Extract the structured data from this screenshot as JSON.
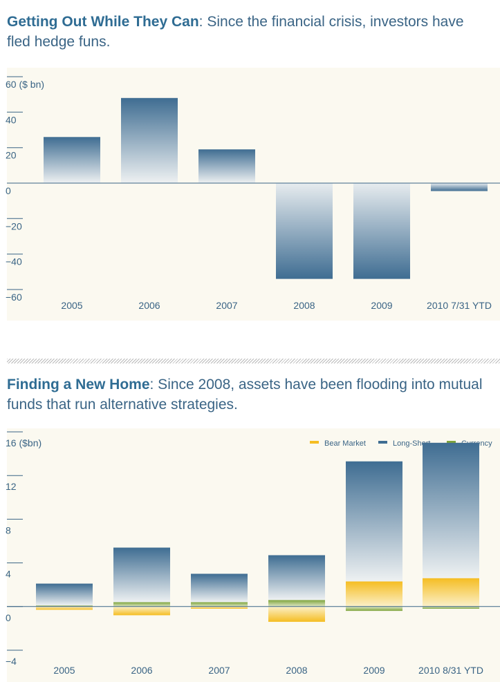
{
  "colors": {
    "panel": "#fbf9f0",
    "blue": "#3f6d92",
    "yellow": "#f5bd22",
    "green": "#7ea43c",
    "text": "#3a6485"
  },
  "top": {
    "title_bold": "Getting Out While They Can",
    "title_rest": ": Since the financial crisis, investors have fled hedge funs."
  },
  "bottom": {
    "title_bold": "Finding a New Home",
    "title_rest": ": Since 2008, assets have been flooding into mutual funds that run alternative strategies."
  },
  "chart_data": [
    {
      "type": "bar",
      "title": "Getting Out While They Can",
      "ylabel": "($ bn)",
      "ylim": [
        -60,
        60
      ],
      "yticks": [
        "60 ($ bn)",
        "40",
        "20",
        "0",
        "−20",
        "−40",
        "−60"
      ],
      "categories": [
        "2005",
        "2006",
        "2007",
        "2008",
        "2009",
        "2010 7/31 YTD"
      ],
      "values": [
        26,
        48,
        19,
        -54,
        -54,
        -4.5
      ]
    },
    {
      "type": "bar",
      "title": "Finding a New Home",
      "ylabel": "($bn)",
      "ylim": [
        -4,
        16
      ],
      "yticks": [
        "16 ($bn)",
        "12",
        "8",
        "4",
        "0",
        "−4"
      ],
      "categories": [
        "2005",
        "2006",
        "2007",
        "2008",
        "2009",
        "2010 8/31 YTD"
      ],
      "legend": [
        "Bear Market",
        "Long-Short",
        "Currency"
      ],
      "series": [
        {
          "name": "Bear Market",
          "values": [
            -0.3,
            -0.8,
            -0.2,
            -1.4,
            2.3,
            2.6
          ]
        },
        {
          "name": "Long-Short",
          "values": [
            2.0,
            5.0,
            2.6,
            4.1,
            11.0,
            12.4
          ]
        },
        {
          "name": "Currency",
          "values": [
            0.1,
            0.4,
            0.4,
            0.6,
            -0.4,
            -0.2
          ]
        }
      ]
    }
  ]
}
